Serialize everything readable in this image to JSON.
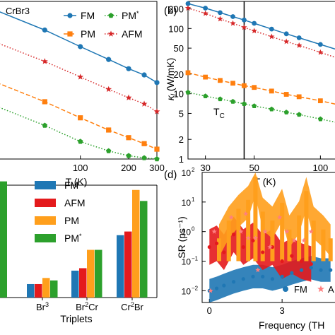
{
  "chart_data": [
    {
      "panel_label": "",
      "type": "line",
      "title": "",
      "annotation": "CrBr3",
      "xlabel": "T (K)",
      "ylabel": "",
      "xscale": "log",
      "yscale": "log",
      "xlim": [
        30,
        300
      ],
      "ylim": [
        3,
        300
      ],
      "xticks": [
        {
          "value": 100,
          "label": "100"
        },
        {
          "value": 200,
          "label": "200"
        },
        {
          "value": 300,
          "label": "300"
        }
      ],
      "legend": {
        "placement": "top-right",
        "columns": 2
      },
      "series": [
        {
          "name": "FM",
          "color": "#1f77b4",
          "marker": "circle",
          "linestyle": "solid",
          "x": [
            30,
            60,
            100,
            150,
            200,
            250,
            300
          ],
          "y": [
            230,
            130,
            80,
            55,
            42,
            35,
            28
          ]
        },
        {
          "name": "PM",
          "color": "#ff7f0e",
          "marker": "square",
          "linestyle": "dashed",
          "x": [
            30,
            60,
            100,
            150,
            200,
            250,
            300
          ],
          "y": [
            28,
            16,
            10,
            7,
            5.6,
            4.7,
            4
          ]
        },
        {
          "name": "PM*",
          "color": "#2ca02c",
          "marker": "pentagon",
          "linestyle": "dotted",
          "x": [
            30,
            60,
            100,
            150,
            200,
            250,
            300
          ],
          "y": [
            14,
            8,
            5,
            3.8,
            3.3,
            3.1,
            3
          ]
        },
        {
          "name": "AFM",
          "color": "#d62728",
          "marker": "star",
          "linestyle": "dotted",
          "x": [
            30,
            60,
            100,
            150,
            200,
            250,
            300
          ],
          "y": [
            90,
            52,
            33,
            23,
            18,
            15,
            12
          ]
        }
      ]
    },
    {
      "panel_label": "(b)",
      "type": "line",
      "title": "",
      "xlabel": "T (K)",
      "ylabel": "κl (W/mK)",
      "xscale": "log",
      "yscale": "log",
      "xlim": [
        25,
        120
      ],
      "ylim": [
        1,
        260
      ],
      "xticks": [
        {
          "value": 30,
          "label": "30"
        },
        {
          "value": 50,
          "label": "50"
        },
        {
          "value": 100,
          "label": "100"
        }
      ],
      "yticks": [
        {
          "value": 1,
          "label": "1"
        },
        {
          "value": 2,
          "label": "2"
        },
        {
          "value": 5,
          "label": "5"
        },
        {
          "value": 10,
          "label": "10"
        },
        {
          "value": 20,
          "label": "20"
        },
        {
          "value": 50,
          "label": "50"
        },
        {
          "value": 100,
          "label": "100"
        },
        {
          "value": 200,
          "label": "200"
        }
      ],
      "vline": {
        "x": 45,
        "label": "TC"
      },
      "series": [
        {
          "name": "FM",
          "color": "#1f77b4",
          "marker": "circle",
          "linestyle": "solid",
          "x": [
            25,
            30,
            35,
            40,
            45,
            50,
            60,
            70,
            80,
            100,
            120
          ],
          "y": [
            240,
            205,
            175,
            152,
            135,
            120,
            98,
            83,
            72,
            57,
            47
          ]
        },
        {
          "name": "AFM",
          "color": "#d62728",
          "marker": "star",
          "linestyle": "dotted",
          "x": [
            25,
            30,
            35,
            40,
            45,
            50,
            60,
            70,
            80,
            100,
            120
          ],
          "y": [
            205,
            170,
            140,
            120,
            104,
            92,
            75,
            63,
            55,
            43,
            35
          ]
        },
        {
          "name": "PM",
          "color": "#ff7f0e",
          "marker": "square",
          "linestyle": "dashed",
          "x": [
            25,
            30,
            35,
            40,
            45,
            50,
            60,
            70,
            80,
            100,
            120
          ],
          "y": [
            21,
            18,
            16,
            14.5,
            13.3,
            12.5,
            11,
            9.8,
            9,
            7.8,
            6.8
          ]
        },
        {
          "name": "PM*",
          "color": "#2ca02c",
          "marker": "pentagon",
          "linestyle": "dotted",
          "x": [
            25,
            30,
            35,
            40,
            45,
            50,
            60,
            70,
            80,
            100,
            120
          ],
          "y": [
            10.5,
            9.2,
            8.3,
            7.6,
            7,
            6.5,
            5.8,
            5.2,
            4.8,
            4.1,
            3.6
          ]
        }
      ]
    },
    {
      "panel_label": "",
      "type": "bar",
      "title": "",
      "xlabel": "Triplets",
      "ylabel": "",
      "categories": [
        "Br3",
        "Br2Cr",
        "Cr2Br"
      ],
      "category_display": [
        [
          {
            "t": "Br",
            "sup": false
          },
          {
            "t": "3",
            "sup": true
          }
        ],
        [
          {
            "t": "Br",
            "sup": false
          },
          {
            "t": "2",
            "sup": true
          },
          {
            "t": "Cr",
            "sup": false
          }
        ],
        [
          {
            "t": "Cr",
            "sup": false
          },
          {
            "t": "2",
            "sup": true
          },
          {
            "t": "Br",
            "sup": false
          }
        ]
      ],
      "ylim": [
        0,
        1
      ],
      "legend": {
        "placement": "top-left"
      },
      "series": [
        {
          "name": "FM",
          "color": "#1f77b4",
          "values": [
            0.11,
            0.22,
            0.51
          ]
        },
        {
          "name": "AFM",
          "color": "#e41a1c",
          "values": [
            0.11,
            0.24,
            0.54
          ]
        },
        {
          "name": "PM",
          "color": "#ff9f1c",
          "values": [
            0.16,
            0.39,
            0.88
          ]
        },
        {
          "name": "PM*",
          "color": "#2ca02c",
          "values": [
            0.14,
            0.39,
            0.79
          ]
        }
      ],
      "offscreen_bar": {
        "color": "#2ca02c",
        "value": 0.95
      }
    },
    {
      "panel_label": "(d)",
      "type": "scatter",
      "title": "",
      "xlabel": "Frequency (TH",
      "ylabel": "SR (ps⁻¹)",
      "yscale": "log",
      "xlim": [
        -0.3,
        5.3
      ],
      "ylim": [
        0.004,
        100
      ],
      "xticks": [
        {
          "value": 0,
          "label": "0"
        },
        {
          "value": 3,
          "label": "3"
        }
      ],
      "yticks": [
        {
          "value": 0.01,
          "base": "10",
          "exp": "−2"
        },
        {
          "value": 0.1,
          "base": "10",
          "exp": "−1"
        },
        {
          "value": 1,
          "base": "10",
          "exp": "0"
        },
        {
          "value": 10,
          "base": "10",
          "exp": "1"
        },
        {
          "value": 100,
          "base": "10",
          "exp": "2"
        }
      ],
      "legend": {
        "placement": "bottom-right",
        "entries": [
          {
            "label": "FM",
            "color": "#1f77b4",
            "marker": "circle"
          },
          {
            "label": "A",
            "color": "#ff7f7f",
            "marker": "star"
          }
        ]
      },
      "series": [
        {
          "name": "FM",
          "color": "#1f77b4",
          "x": [
            0,
            0.3,
            0.6,
            1.0,
            1.4,
            1.8,
            2.2,
            2.6,
            3.0,
            3.4,
            3.8,
            4.2,
            4.6,
            5.0
          ],
          "y": [
            0.01,
            0.012,
            0.015,
            0.02,
            0.025,
            0.03,
            0.03,
            0.025,
            0.03,
            0.04,
            0.05,
            0.06,
            0.05,
            0.05
          ]
        },
        {
          "name": "AFM",
          "color": "#e41a1c",
          "x": [
            0,
            0.3,
            0.6,
            1.0,
            1.4,
            1.8,
            2.2,
            2.6,
            3.0,
            3.4,
            3.8,
            4.2
          ],
          "y": [
            0.3,
            0.4,
            0.2,
            0.8,
            0.3,
            0.5,
            0.2,
            0.3,
            0.1,
            0.15,
            0.1,
            0.08
          ]
        },
        {
          "name": "PM",
          "color": "#ff9f1c",
          "x": [
            0.4,
            0.8,
            1.2,
            1.6,
            1.9,
            2.2,
            2.6,
            3.0,
            3.3,
            3.7,
            4.0,
            4.3,
            4.7,
            5.0
          ],
          "y": [
            0.5,
            2,
            5,
            10,
            60,
            4,
            2,
            8,
            1,
            3,
            20,
            2,
            1,
            0.5
          ]
        },
        {
          "name": "AFM-star",
          "color": "#ff7f7f",
          "x": [
            0.05,
            0.2,
            0.9,
            1.3,
            1.5,
            1.6,
            1.9,
            2.0,
            2.3,
            2.5,
            2.9,
            3.2,
            3.5,
            3.9,
            4.2
          ],
          "y": [
            0.01,
            1,
            3,
            1,
            4,
            0.6,
            0.6,
            0.05,
            1,
            0.3,
            3,
            1,
            0.5,
            0.5,
            1
          ]
        }
      ]
    }
  ]
}
